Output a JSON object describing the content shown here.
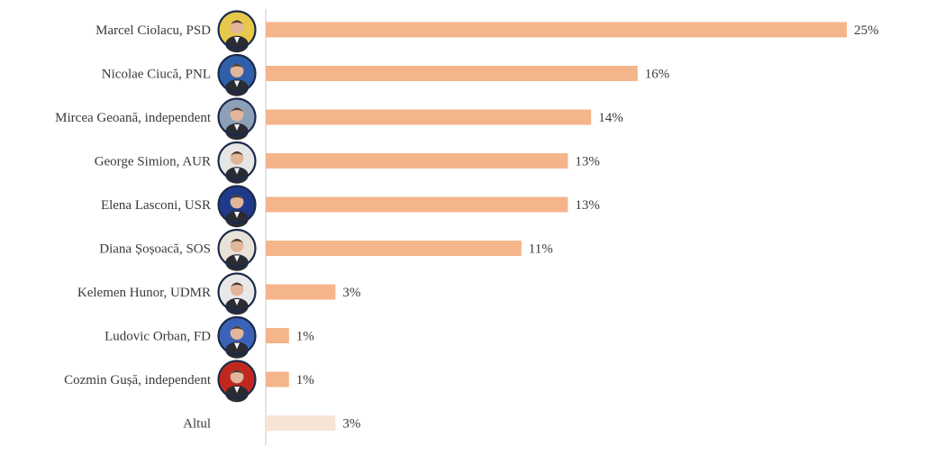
{
  "colors": {
    "bar": "#F5B58B",
    "bar_other": "#F8E4D6",
    "axis": "#C8C8C8",
    "text": "#3a3a3a"
  },
  "chart_data": {
    "type": "bar",
    "orientation": "horizontal",
    "title": "",
    "xlabel": "",
    "ylabel": "",
    "grid": false,
    "legend": "none",
    "xlim": [
      0,
      25
    ],
    "categories": [
      "Marcel Ciolacu, PSD",
      "Nicolae Ciucă, PNL",
      "Mircea Geoană, independent",
      "George Simion, AUR",
      "Elena Lasconi, USR",
      "Diana Șoșoacă, SOS",
      "Kelemen Hunor, UDMR",
      "Ludovic Orban, FD",
      "Cozmin Gușă, independent",
      "Altul"
    ],
    "values": [
      25,
      16,
      14,
      13,
      13,
      11,
      3,
      1,
      1,
      3
    ],
    "value_labels": [
      "25%",
      "16%",
      "14%",
      "13%",
      "13%",
      "11%",
      "3%",
      "1%",
      "1%",
      "3%"
    ],
    "avatars": [
      {
        "icon": "avatar-photo-icon",
        "ring": "#1B2A4A",
        "bg": "#E8C84A"
      },
      {
        "icon": "avatar-photo-icon",
        "ring": "#1B2A4A",
        "bg": "#2F5FA8"
      },
      {
        "icon": "avatar-photo-icon",
        "ring": "#1B2A4A",
        "bg": "#8DA0B8"
      },
      {
        "icon": "avatar-photo-icon",
        "ring": "#1B2A4A",
        "bg": "#E6E6E6"
      },
      {
        "icon": "avatar-photo-icon",
        "ring": "#1B2A4A",
        "bg": "#1F3A8A"
      },
      {
        "icon": "avatar-photo-icon",
        "ring": "#1B2A4A",
        "bg": "#E9E2D8"
      },
      {
        "icon": "avatar-photo-icon",
        "ring": "#1B2A4A",
        "bg": "#E8E8E8"
      },
      {
        "icon": "avatar-photo-icon",
        "ring": "#1B2A4A",
        "bg": "#3A62B8"
      },
      {
        "icon": "avatar-photo-icon",
        "ring": "#1B2A4A",
        "bg": "#C0281E"
      },
      null
    ]
  }
}
